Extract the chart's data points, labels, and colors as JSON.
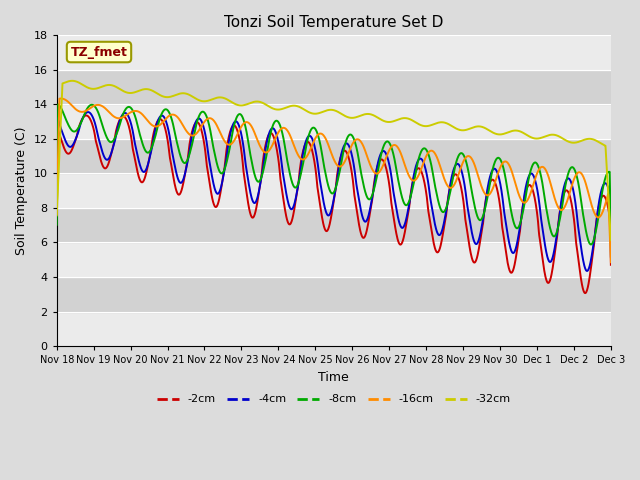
{
  "title": "Tonzi Soil Temperature Set D",
  "xlabel": "Time",
  "ylabel": "Soil Temperature (C)",
  "ylim": [
    0,
    18
  ],
  "yticks": [
    0,
    2,
    4,
    6,
    8,
    10,
    12,
    14,
    16,
    18
  ],
  "annotation_text": "TZ_fmet",
  "annotation_color": "#8B0000",
  "annotation_bg": "#FFFFCC",
  "annotation_border": "#999900",
  "series_colors": {
    "-2cm": "#CC0000",
    "-4cm": "#0000CC",
    "-8cm": "#00AA00",
    "-16cm": "#FF8C00",
    "-32cm": "#CCCC00"
  },
  "xtick_labels": [
    "Nov 18",
    "Nov 19",
    "Nov 20",
    "Nov 21",
    "Nov 22",
    "Nov 23",
    "Nov 24",
    "Nov 25",
    "Nov 26",
    "Nov 27",
    "Nov 28",
    "Nov 29",
    "Nov 30",
    "Dec 1",
    "Dec 2",
    "Dec 3"
  ],
  "legend_order": [
    "-2cm",
    "-4cm",
    "-8cm",
    "-16cm",
    "-32cm"
  ],
  "fig_bg": "#DCDCDC",
  "plot_bg": "#E8E8E8",
  "band_light": "#EBEBEB",
  "band_dark": "#D2D2D2",
  "linewidth": 1.4,
  "title_fontsize": 11,
  "axis_label_fontsize": 9,
  "tick_fontsize": 8,
  "xtick_fontsize": 7,
  "legend_fontsize": 8
}
